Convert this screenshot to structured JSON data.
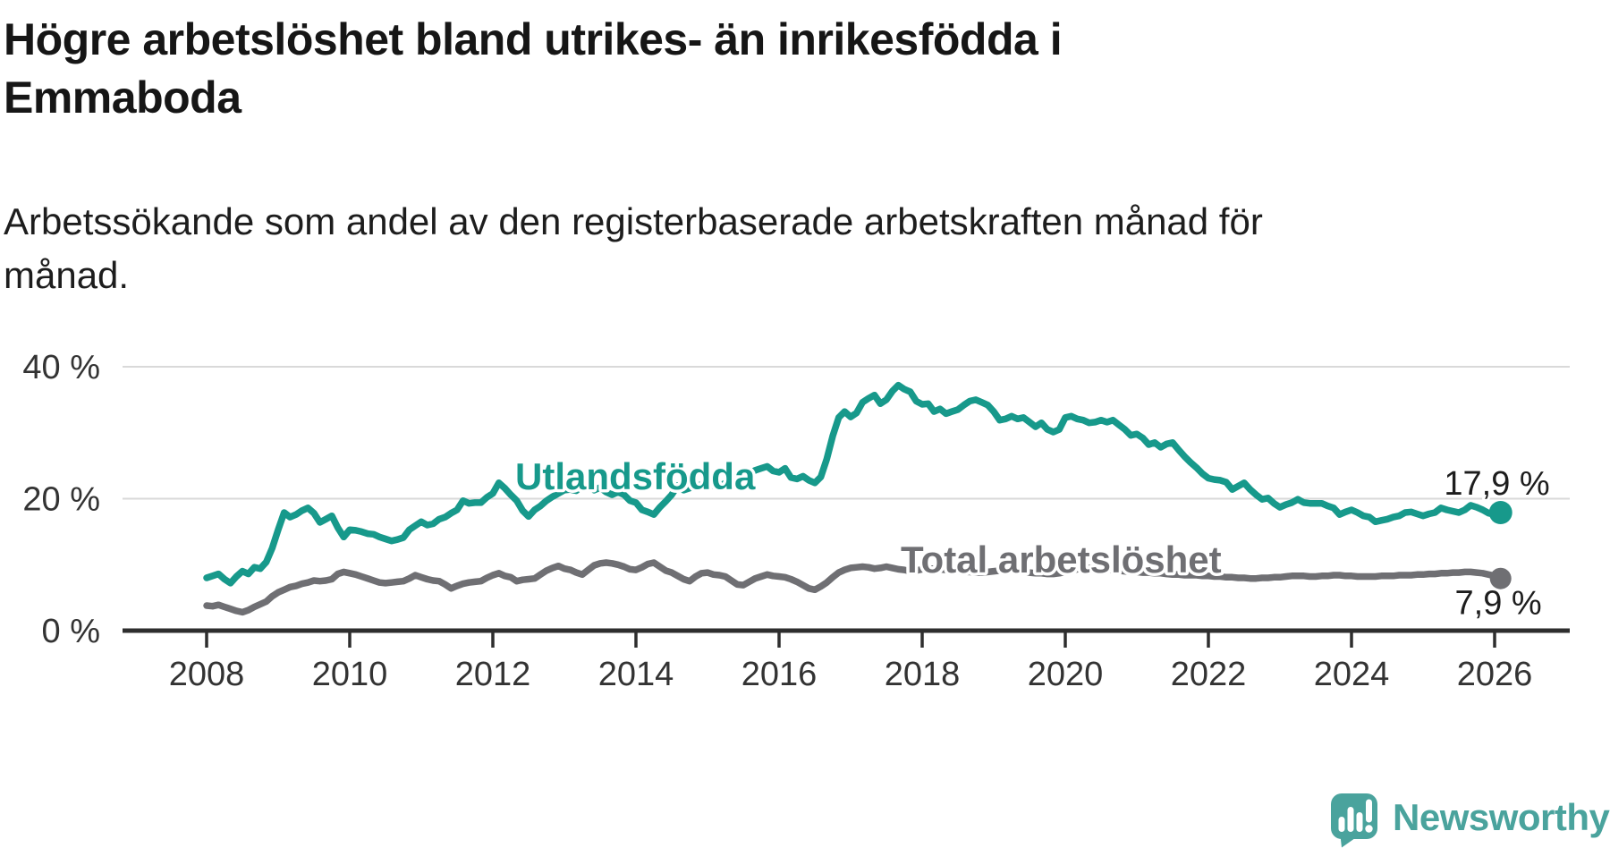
{
  "page": {
    "title": "Högre arbetslöshet bland utrikes- än inrikesfödda i Emmaboda",
    "subtitle": "Arbetssökande som andel av den registerbaserade arbetskraften månad för månad."
  },
  "branding": {
    "name": "Newsworthy",
    "logo_icon": "newsworthy-speech-bubble-bar-chart-icon",
    "color": "#4AA39D"
  },
  "chart_data": {
    "type": "line",
    "unit": "%",
    "grid": "horizontal-only",
    "x_axis": {
      "ticks": [
        2008,
        2010,
        2012,
        2014,
        2016,
        2018,
        2020,
        2022,
        2024,
        2026
      ],
      "range_years": [
        2008.0,
        2026.9
      ]
    },
    "y_axis": {
      "ticks": [
        {
          "value": 0,
          "label": "0 %"
        },
        {
          "value": 20,
          "label": "20 %"
        },
        {
          "value": 40,
          "label": "40 %"
        }
      ],
      "range": [
        0,
        42
      ]
    },
    "series": [
      {
        "id": "utlandsfodda",
        "name": "Utlandsfödda",
        "color": "#17998B",
        "end_value_label": "17,9 %",
        "end_value": 17.9,
        "start_year": 2008,
        "points_per_year": 12,
        "values": [
          8.0,
          8.3,
          8.6,
          7.8,
          7.2,
          8.2,
          9.0,
          8.6,
          9.6,
          9.4,
          10.4,
          12.5,
          15.3,
          17.9,
          17.2,
          17.6,
          18.2,
          18.6,
          17.8,
          16.4,
          16.9,
          17.4,
          15.6,
          14.2,
          15.3,
          15.2,
          15.0,
          14.7,
          14.6,
          14.2,
          13.9,
          13.6,
          13.8,
          14.1,
          15.3,
          15.9,
          16.5,
          16.0,
          16.2,
          16.9,
          17.2,
          17.8,
          18.3,
          19.7,
          19.3,
          19.4,
          19.4,
          20.2,
          20.8,
          22.4,
          21.6,
          20.6,
          19.7,
          18.2,
          17.3,
          18.3,
          18.9,
          19.7,
          20.3,
          20.8,
          21.3,
          21.4,
          21.2,
          22.0,
          22.0,
          21.3,
          21.7,
          21.0,
          20.6,
          21.0,
          20.6,
          19.7,
          19.4,
          18.3,
          18.0,
          17.6,
          18.7,
          19.6,
          20.6,
          22.0,
          21.3,
          21.6,
          22.0,
          22.1,
          22.1,
          22.0,
          21.8,
          22.4,
          22.7,
          23.0,
          23.4,
          23.8,
          24.3,
          24.6,
          24.9,
          24.2,
          24.0,
          24.6,
          23.2,
          23.0,
          23.4,
          22.8,
          22.4,
          23.3,
          26.0,
          29.5,
          32.3,
          33.2,
          32.4,
          33.0,
          34.6,
          35.2,
          35.7,
          34.4,
          35.0,
          36.3,
          37.2,
          36.6,
          36.2,
          34.8,
          34.3,
          34.4,
          33.2,
          33.6,
          32.9,
          33.2,
          33.5,
          34.2,
          34.8,
          35.0,
          34.6,
          34.2,
          33.2,
          31.9,
          32.1,
          32.5,
          32.1,
          32.3,
          31.6,
          30.9,
          31.5,
          30.5,
          30.1,
          30.5,
          32.3,
          32.5,
          32.1,
          31.9,
          31.5,
          31.6,
          31.9,
          31.6,
          31.9,
          31.2,
          30.5,
          29.6,
          29.8,
          29.2,
          28.2,
          28.5,
          27.8,
          28.3,
          28.5,
          27.4,
          26.4,
          25.5,
          24.7,
          23.8,
          23.1,
          22.9,
          22.8,
          22.5,
          21.4,
          21.9,
          22.4,
          21.4,
          20.6,
          19.9,
          20.1,
          19.3,
          18.7,
          19.1,
          19.4,
          19.9,
          19.4,
          19.3,
          19.3,
          19.3,
          18.9,
          18.6,
          17.6,
          18.0,
          18.3,
          17.9,
          17.4,
          17.2,
          16.5,
          16.7,
          16.9,
          17.2,
          17.4,
          17.9,
          18.0,
          17.7,
          17.4,
          17.7,
          17.9,
          18.6,
          18.3,
          18.1,
          17.9,
          18.3,
          19.0,
          18.7,
          18.3,
          17.8,
          17.6,
          17.9
        ]
      },
      {
        "id": "total",
        "name": "Total arbetslöshet",
        "color": "#6F6F73",
        "end_value_label": "7,9 %",
        "end_value": 7.9,
        "start_year": 2008,
        "points_per_year": 12,
        "values": [
          3.8,
          3.7,
          3.9,
          3.6,
          3.3,
          3.0,
          2.8,
          3.1,
          3.6,
          4.0,
          4.4,
          5.2,
          5.8,
          6.2,
          6.6,
          6.8,
          7.1,
          7.3,
          7.6,
          7.5,
          7.6,
          7.8,
          8.6,
          8.9,
          8.7,
          8.5,
          8.2,
          7.9,
          7.6,
          7.3,
          7.2,
          7.3,
          7.4,
          7.5,
          7.9,
          8.4,
          8.1,
          7.8,
          7.6,
          7.5,
          7.0,
          6.4,
          6.8,
          7.1,
          7.3,
          7.4,
          7.5,
          8.0,
          8.4,
          8.7,
          8.3,
          8.1,
          7.5,
          7.7,
          7.8,
          7.9,
          8.5,
          9.1,
          9.5,
          9.8,
          9.4,
          9.2,
          8.8,
          8.5,
          9.2,
          9.9,
          10.2,
          10.3,
          10.2,
          10.0,
          9.7,
          9.3,
          9.2,
          9.6,
          10.1,
          10.3,
          9.7,
          9.1,
          8.8,
          8.3,
          7.8,
          7.5,
          8.2,
          8.7,
          8.8,
          8.5,
          8.4,
          8.2,
          7.6,
          7.0,
          6.9,
          7.4,
          7.9,
          8.2,
          8.5,
          8.3,
          8.2,
          8.1,
          7.8,
          7.4,
          6.9,
          6.4,
          6.2,
          6.7,
          7.3,
          8.1,
          8.8,
          9.2,
          9.5,
          9.6,
          9.7,
          9.6,
          9.4,
          9.5,
          9.7,
          9.5,
          9.3,
          9.2,
          9.0,
          9.1,
          9.3,
          9.4,
          9.4,
          9.3,
          9.2,
          9.1,
          9.0,
          8.9,
          8.9,
          8.8,
          8.8,
          8.9,
          9.0,
          9.1,
          9.2,
          9.1,
          9.0,
          8.9,
          8.8,
          8.7,
          8.7,
          8.6,
          8.6,
          8.7,
          8.9,
          9.1,
          9.3,
          9.4,
          9.5,
          9.5,
          9.4,
          9.3,
          9.2,
          9.1,
          9.0,
          8.9,
          8.9,
          8.8,
          8.8,
          8.7,
          8.7,
          8.6,
          8.5,
          8.5,
          8.4,
          8.4,
          8.4,
          8.3,
          8.3,
          8.2,
          8.2,
          8.1,
          8.1,
          8.0,
          8.0,
          7.9,
          7.9,
          8.0,
          8.0,
          8.1,
          8.1,
          8.2,
          8.3,
          8.3,
          8.3,
          8.2,
          8.2,
          8.3,
          8.3,
          8.4,
          8.4,
          8.3,
          8.3,
          8.2,
          8.2,
          8.2,
          8.2,
          8.3,
          8.3,
          8.3,
          8.4,
          8.4,
          8.4,
          8.5,
          8.5,
          8.6,
          8.6,
          8.7,
          8.7,
          8.8,
          8.8,
          8.9,
          8.9,
          8.8,
          8.7,
          8.5,
          8.3,
          7.9
        ]
      }
    ]
  }
}
